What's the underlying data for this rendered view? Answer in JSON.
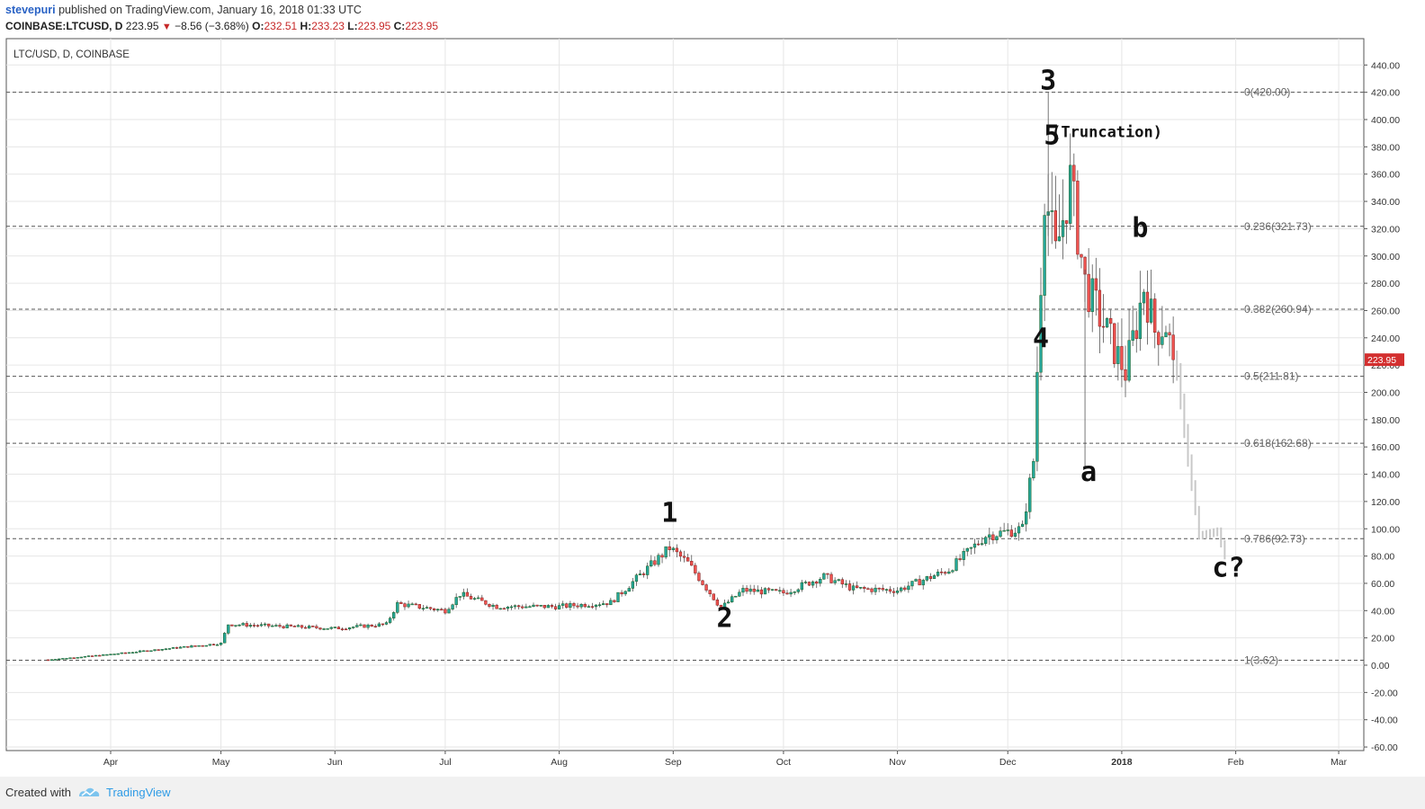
{
  "header": {
    "username": "stevepuri",
    "published_text": " published on TradingView.com, January 16, 2018 01:33 UTC",
    "symbol": "COINBASE:LTCUSD, D",
    "last": "223.95",
    "change": "−8.56 (−3.68%)",
    "o_label": "O:",
    "o_value": "232.51",
    "h_label": "H:",
    "h_value": "233.23",
    "l_label": "L:",
    "l_value": "223.95",
    "c_label": "C:",
    "c_value": "223.95"
  },
  "chart_title": "LTC/USD, D, COINBASE",
  "footer": {
    "created_with": "Created with",
    "brand": "TradingView"
  },
  "colors": {
    "up": "#26a69a",
    "down": "#ef5350",
    "up_border": "#1b5e20",
    "down_border": "#7f1d1d",
    "projection": "#c8c8c8",
    "grid": "#e6e6e6",
    "fib": "#555555",
    "price_tag": "#d32f2f"
  },
  "chart_data": {
    "type": "candlestick",
    "title": "LTC/USD, D, COINBASE",
    "ylim": [
      -60,
      450
    ],
    "y_ticks": [
      "440.00",
      "420.00",
      "400.00",
      "380.00",
      "360.00",
      "340.00",
      "320.00",
      "300.00",
      "280.00",
      "260.00",
      "240.00",
      "220.00",
      "200.00",
      "180.00",
      "160.00",
      "140.00",
      "120.00",
      "100.00",
      "80.00",
      "60.00",
      "40.00",
      "20.00",
      "0.00",
      "-20.00",
      "-40.00",
      "-60.00"
    ],
    "x_ticks": [
      "Apr",
      "May",
      "Jun",
      "Jul",
      "Aug",
      "Sep",
      "Oct",
      "Nov",
      "Dec",
      "2018",
      "Feb",
      "Mar"
    ],
    "last_price": "223.95",
    "fib_levels": [
      {
        "label": "0(420.00)",
        "value": 420.0
      },
      {
        "label": "0.236(321.73)",
        "value": 321.73
      },
      {
        "label": "0.382(260.94)",
        "value": 260.94
      },
      {
        "label": "0.5(211.81)",
        "value": 211.81
      },
      {
        "label": "0.618(162.68)",
        "value": 162.68
      },
      {
        "label": "0.786(92.73)",
        "value": 92.73
      },
      {
        "label": "1(3.62)",
        "value": 3.62
      }
    ],
    "wave_labels": [
      {
        "text": "1",
        "x": "2017-08-31",
        "y": 105
      },
      {
        "text": "2",
        "x": "2017-09-15",
        "y": 28
      },
      {
        "text": "3",
        "x": "2017-12-12",
        "y": 422
      },
      {
        "text": "4",
        "x": "2017-12-10",
        "y": 233
      },
      {
        "text": "5",
        "x": "2017-12-13",
        "y": 382
      },
      {
        "text": "(Truncation)",
        "x": "2017-12-28",
        "y": 387
      },
      {
        "text": "a",
        "x": "2017-12-23",
        "y": 135
      },
      {
        "text": "b",
        "x": "2018-01-06",
        "y": 314
      },
      {
        "text": "c?",
        "x": "2018-01-30",
        "y": 65
      }
    ],
    "key_prices": [
      {
        "date": "2017-03-15",
        "close": 4
      },
      {
        "date": "2017-04-01",
        "close": 8
      },
      {
        "date": "2017-05-01",
        "close": 16
      },
      {
        "date": "2017-05-03",
        "close": 30
      },
      {
        "date": "2017-06-01",
        "close": 27
      },
      {
        "date": "2017-06-15",
        "close": 30
      },
      {
        "date": "2017-06-18",
        "close": 45
      },
      {
        "date": "2017-07-01",
        "close": 40
      },
      {
        "date": "2017-07-05",
        "close": 52
      },
      {
        "date": "2017-07-15",
        "close": 43
      },
      {
        "date": "2017-08-01",
        "close": 43
      },
      {
        "date": "2017-08-15",
        "close": 46
      },
      {
        "date": "2017-08-31",
        "close": 86
      },
      {
        "date": "2017-09-05",
        "close": 75
      },
      {
        "date": "2017-09-14",
        "close": 42
      },
      {
        "date": "2017-09-20",
        "close": 55
      },
      {
        "date": "2017-10-01",
        "close": 53
      },
      {
        "date": "2017-10-12",
        "close": 65
      },
      {
        "date": "2017-10-20",
        "close": 56
      },
      {
        "date": "2017-11-01",
        "close": 55
      },
      {
        "date": "2017-11-15",
        "close": 70
      },
      {
        "date": "2017-11-25",
        "close": 95
      },
      {
        "date": "2017-12-05",
        "close": 100
      },
      {
        "date": "2017-12-08",
        "close": 150
      },
      {
        "date": "2017-12-11",
        "close": 350
      },
      {
        "date": "2017-12-14",
        "close": 300
      },
      {
        "date": "2017-12-18",
        "close": 355
      },
      {
        "date": "2017-12-22",
        "close": 280
      },
      {
        "date": "2017-12-30",
        "close": 232
      },
      {
        "date": "2018-01-02",
        "close": 215
      },
      {
        "date": "2018-01-05",
        "close": 250
      },
      {
        "date": "2018-01-07",
        "close": 278
      },
      {
        "date": "2018-01-10",
        "close": 245
      },
      {
        "date": "2018-01-13",
        "close": 250
      },
      {
        "date": "2018-01-15",
        "close": 223.95
      }
    ],
    "projection": [
      {
        "date": "2018-01-16",
        "close": 215
      },
      {
        "date": "2018-01-19",
        "close": 150
      },
      {
        "date": "2018-01-22",
        "close": 95
      },
      {
        "date": "2018-01-27",
        "close": 98
      },
      {
        "date": "2018-01-29",
        "close": 80
      }
    ]
  }
}
